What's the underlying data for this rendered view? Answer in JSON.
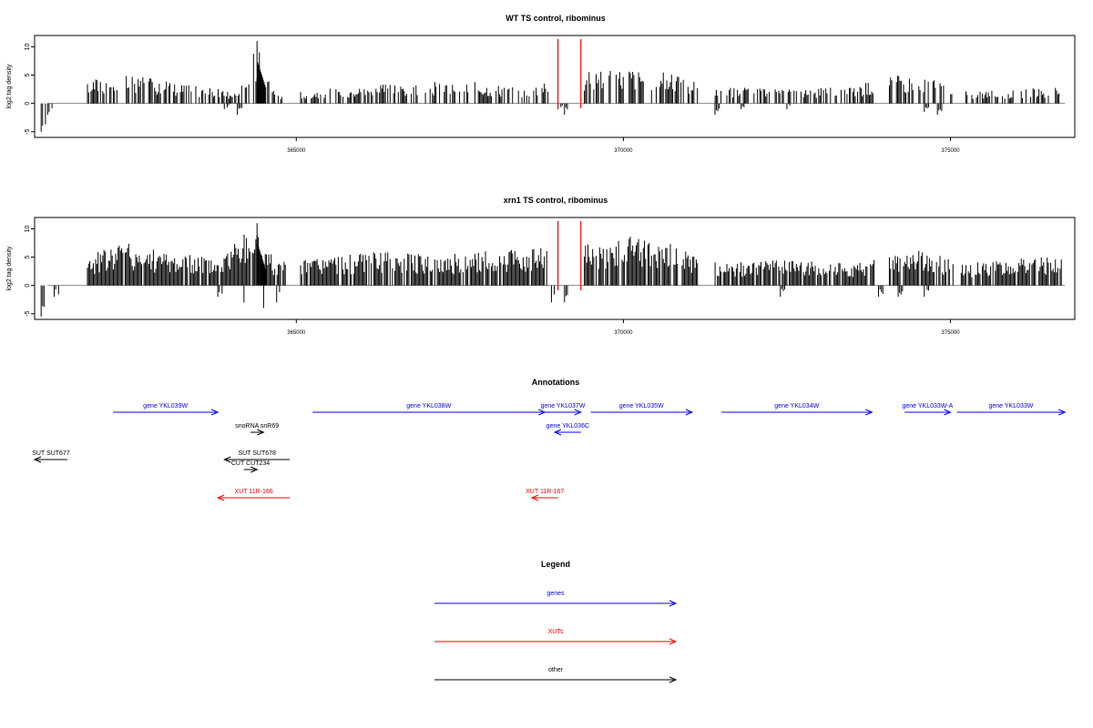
{
  "chart_data": [
    {
      "type": "bar",
      "title": "WT TS control, ribominus",
      "ylabel": "log2 tag density",
      "xlabel": "",
      "xlim": [
        361000,
        376900
      ],
      "ylim": [
        -6,
        12
      ],
      "yticks": [
        -5,
        0,
        5,
        10
      ],
      "xticks": [
        365000,
        370000,
        375000
      ],
      "highlight_x": [
        369000,
        369350
      ],
      "series": [
        {
          "values_pos": [
            [
              361800,
              4.5
            ],
            [
              362500,
              5
            ],
            [
              363000,
              4
            ],
            [
              364100,
              2
            ],
            [
              364400,
              11
            ],
            [
              364500,
              7
            ],
            [
              364700,
              2
            ],
            [
              365300,
              2.5
            ],
            [
              366500,
              3.5
            ],
            [
              367500,
              4
            ],
            [
              368500,
              3
            ],
            [
              369500,
              6
            ],
            [
              370200,
              6.5
            ],
            [
              370800,
              5
            ],
            [
              371500,
              3
            ],
            [
              372500,
              2.5
            ],
            [
              373500,
              3
            ],
            [
              374100,
              5
            ],
            [
              374500,
              5.5
            ],
            [
              374900,
              4
            ],
            [
              375300,
              2
            ],
            [
              376000,
              2.5
            ],
            [
              376700,
              3
            ]
          ]
        },
        {
          "values_neg": [
            [
              361100,
              -5
            ],
            [
              361200,
              -2
            ],
            [
              363900,
              -1
            ],
            [
              364100,
              -2
            ],
            [
              369000,
              -1
            ],
            [
              369100,
              -2
            ],
            [
              371400,
              -2
            ],
            [
              371800,
              -1
            ],
            [
              372500,
              -1
            ],
            [
              374600,
              -1.5
            ],
            [
              374800,
              -2
            ]
          ]
        }
      ]
    },
    {
      "type": "bar",
      "title": "xrn1 TS control, ribominus",
      "ylabel": "log2 tag density",
      "xlabel": "",
      "xlim": [
        361000,
        376900
      ],
      "ylim": [
        -6,
        12
      ],
      "yticks": [
        -5,
        0,
        5,
        10
      ],
      "xticks": [
        365000,
        370000,
        375000
      ],
      "highlight_x": [
        369000,
        369350
      ],
      "series": [
        {
          "values_pos": [
            [
              361800,
              5
            ],
            [
              362300,
              8
            ],
            [
              363000,
              6
            ],
            [
              363800,
              5
            ],
            [
              364400,
              11
            ],
            [
              364700,
              4
            ],
            [
              365200,
              5
            ],
            [
              366300,
              6
            ],
            [
              367200,
              5.5
            ],
            [
              368500,
              6.5
            ],
            [
              369600,
              8
            ],
            [
              370200,
              9
            ],
            [
              370700,
              7.5
            ],
            [
              371500,
              4
            ],
            [
              372500,
              4.5
            ],
            [
              373500,
              4
            ],
            [
              374300,
              7
            ],
            [
              374700,
              6
            ],
            [
              375300,
              4
            ],
            [
              376100,
              5
            ],
            [
              376700,
              5
            ]
          ]
        },
        {
          "values_neg": [
            [
              361100,
              -5.5
            ],
            [
              361300,
              -2
            ],
            [
              363800,
              -2
            ],
            [
              364200,
              -3
            ],
            [
              364500,
              -4
            ],
            [
              364700,
              -3
            ],
            [
              368900,
              -3
            ],
            [
              369100,
              -3
            ],
            [
              372400,
              -2
            ],
            [
              373900,
              -2
            ],
            [
              374200,
              -2
            ],
            [
              374600,
              -2
            ]
          ]
        }
      ]
    }
  ],
  "annotations": {
    "title": "Annotations",
    "features": [
      {
        "label": "gene YKL039W",
        "kind": "gene",
        "start": 362200,
        "end": 363800,
        "strand": "+",
        "row": 0
      },
      {
        "label": "gene YKL038W",
        "kind": "gene",
        "start": 365250,
        "end": 368800,
        "strand": "+",
        "row": 0
      },
      {
        "label": "gene YKL037W",
        "kind": "gene",
        "start": 368800,
        "end": 369350,
        "strand": "+",
        "row": 0
      },
      {
        "label": "gene YKL035W",
        "kind": "gene",
        "start": 369500,
        "end": 371050,
        "strand": "+",
        "row": 0
      },
      {
        "label": "gene YKL034W",
        "kind": "gene",
        "start": 371500,
        "end": 373800,
        "strand": "+",
        "row": 0
      },
      {
        "label": "gene YKL033W-A",
        "kind": "gene",
        "start": 374300,
        "end": 375000,
        "strand": "+",
        "row": 0
      },
      {
        "label": "gene YKL033W",
        "kind": "gene",
        "start": 375100,
        "end": 376900,
        "strand": "+",
        "row": 0
      },
      {
        "label": "gene YKL036C",
        "kind": "gene",
        "start": 368950,
        "end": 369350,
        "strand": "-",
        "row": 1
      },
      {
        "label": "snoRNA snR69",
        "kind": "other",
        "start": 364300,
        "end": 364500,
        "strand": "+",
        "row": 1
      },
      {
        "label": "SUT SUT677",
        "kind": "other",
        "start": 361000,
        "end": 361500,
        "strand": "-",
        "row": 2
      },
      {
        "label": "SUT SUT678",
        "kind": "other",
        "start": 363900,
        "end": 364900,
        "strand": "-",
        "row": 2
      },
      {
        "label": "CUT CUT234",
        "kind": "other",
        "start": 364200,
        "end": 364400,
        "strand": "+",
        "row": 3
      },
      {
        "label": "XUT 11R-166",
        "kind": "xut",
        "start": 363800,
        "end": 364900,
        "strand": "-",
        "row": 4
      },
      {
        "label": "XUT 11R-167",
        "kind": "xut",
        "start": 368600,
        "end": 369000,
        "strand": "-",
        "row": 4
      }
    ]
  },
  "legend": {
    "title": "Legend",
    "items": [
      {
        "label": "genes",
        "color": "#0000ff"
      },
      {
        "label": "XUTs",
        "color": "#ff0000"
      },
      {
        "label": "other",
        "color": "#000000"
      }
    ]
  },
  "colors": {
    "gene": "#0000ff",
    "xut": "#ff0000",
    "other": "#000000",
    "highlight": "#ff0000",
    "bar": "#000000",
    "baseline": "#888888"
  }
}
